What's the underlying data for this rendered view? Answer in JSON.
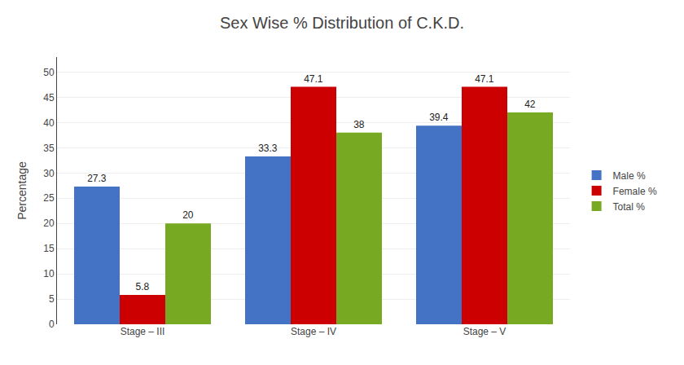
{
  "chart_data": {
    "type": "bar",
    "title": "Sex Wise % Distribution of C.K.D.",
    "categories": [
      "Stage – III",
      "Stage – IV",
      "Stage – V"
    ],
    "series": [
      {
        "name": "Male %",
        "color": "#4472C4",
        "values": [
          27.3,
          33.3,
          39.4
        ]
      },
      {
        "name": "Female %",
        "color": "#CC0000",
        "values": [
          5.8,
          47.1,
          47.1
        ]
      },
      {
        "name": "Total %",
        "color": "#77AA22",
        "values": [
          20,
          38,
          42
        ]
      }
    ],
    "ylabel": "Percentage",
    "ylim": [
      0,
      53
    ],
    "yticks": [
      0,
      5,
      10,
      15,
      20,
      25,
      30,
      35,
      40,
      45,
      50
    ],
    "grid": true,
    "legend": "right",
    "data_labels": true
  }
}
